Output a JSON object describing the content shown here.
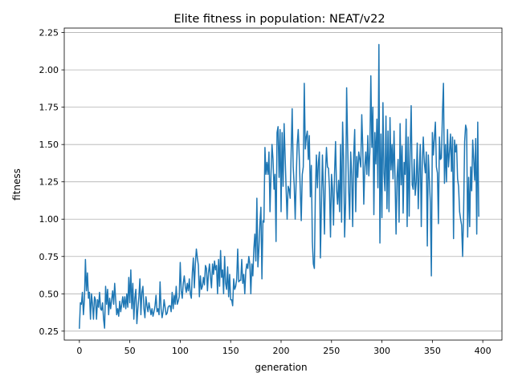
{
  "chart_data": {
    "type": "line",
    "title": "Elite fitness in population: NEAT/v22",
    "xlabel": "generation",
    "ylabel": "fitness",
    "xlim": [
      -15,
      419
    ],
    "ylim": [
      0.19,
      2.28
    ],
    "xticks": [
      0,
      50,
      100,
      150,
      200,
      250,
      300,
      350,
      400
    ],
    "xtick_labels": [
      "0",
      "50",
      "100",
      "150",
      "200",
      "250",
      "300",
      "350",
      "400"
    ],
    "yticks": [
      0.25,
      0.5,
      0.75,
      1.0,
      1.25,
      1.5,
      1.75,
      2.0,
      2.25
    ],
    "ytick_labels": [
      "0.25",
      "0.50",
      "0.75",
      "1.00",
      "1.25",
      "1.50",
      "1.75",
      "2.00",
      "2.25"
    ],
    "grid": "horizontal",
    "legend": "none",
    "line_color": "#1f77b4",
    "x_start": 0,
    "x_step": 1,
    "series": [
      {
        "values": [
          0.27,
          0.44,
          0.43,
          0.51,
          0.36,
          0.46,
          0.73,
          0.52,
          0.64,
          0.47,
          0.51,
          0.33,
          0.5,
          0.43,
          0.33,
          0.48,
          0.46,
          0.33,
          0.46,
          0.41,
          0.51,
          0.4,
          0.39,
          0.44,
          0.33,
          0.27,
          0.55,
          0.43,
          0.53,
          0.36,
          0.47,
          0.4,
          0.46,
          0.52,
          0.43,
          0.57,
          0.46,
          0.36,
          0.4,
          0.35,
          0.45,
          0.38,
          0.43,
          0.48,
          0.41,
          0.48,
          0.4,
          0.5,
          0.41,
          0.61,
          0.44,
          0.66,
          0.4,
          0.57,
          0.33,
          0.47,
          0.53,
          0.3,
          0.4,
          0.48,
          0.6,
          0.36,
          0.51,
          0.55,
          0.4,
          0.34,
          0.48,
          0.42,
          0.38,
          0.44,
          0.4,
          0.36,
          0.4,
          0.35,
          0.38,
          0.42,
          0.49,
          0.38,
          0.4,
          0.36,
          0.58,
          0.4,
          0.34,
          0.38,
          0.46,
          0.41,
          0.36,
          0.37,
          0.41,
          0.42,
          0.42,
          0.38,
          0.51,
          0.4,
          0.49,
          0.43,
          0.55,
          0.43,
          0.45,
          0.48,
          0.71,
          0.52,
          0.47,
          0.57,
          0.62,
          0.55,
          0.51,
          0.57,
          0.52,
          0.6,
          0.5,
          0.47,
          0.64,
          0.74,
          0.54,
          0.7,
          0.8,
          0.74,
          0.69,
          0.48,
          0.62,
          0.53,
          0.55,
          0.61,
          0.56,
          0.69,
          0.67,
          0.52,
          0.64,
          0.7,
          0.61,
          0.54,
          0.7,
          0.63,
          0.72,
          0.66,
          0.69,
          0.5,
          0.73,
          0.55,
          0.79,
          0.61,
          0.66,
          0.5,
          0.75,
          0.57,
          0.53,
          0.68,
          0.48,
          0.63,
          0.46,
          0.46,
          0.42,
          0.6,
          0.53,
          0.55,
          0.6,
          0.8,
          0.58,
          0.59,
          0.59,
          0.73,
          0.57,
          0.63,
          0.5,
          0.65,
          0.7,
          0.67,
          0.75,
          0.7,
          0.5,
          0.7,
          0.62,
          0.8,
          0.9,
          0.72,
          1.14,
          0.68,
          0.8,
          0.97,
          1.08,
          0.6,
          0.99,
          0.98,
          1.48,
          1.3,
          1.38,
          1.3,
          1.45,
          1.05,
          1.3,
          1.5,
          1.4,
          1.2,
          1.3,
          0.85,
          1.58,
          1.62,
          1.28,
          1.6,
          1.05,
          1.58,
          1.22,
          1.64,
          1.42,
          1.2,
          1.0,
          1.22,
          1.2,
          1.14,
          1.45,
          1.74,
          1.35,
          1.23,
          1.0,
          1.27,
          1.5,
          1.6,
          1.42,
          1.2,
          0.99,
          1.3,
          1.35,
          1.91,
          1.47,
          1.55,
          1.59,
          1.4,
          1.56,
          1.15,
          1.36,
          0.85,
          0.7,
          0.67,
          1.18,
          1.43,
          1.21,
          1.38,
          1.45,
          0.74,
          1.1,
          1.43,
          1.19,
          0.9,
          1.31,
          1.48,
          1.35,
          1.34,
          1.2,
          0.88,
          1.3,
          1.2,
          0.96,
          1.3,
          1.52,
          1.2,
          1.1,
          1.26,
          1.05,
          1.5,
          0.98,
          1.65,
          1.4,
          0.88,
          1.11,
          1.88,
          1.5,
          1.2,
          1.0,
          1.45,
          1.3,
          0.95,
          1.43,
          1.6,
          1.05,
          1.42,
          1.28,
          1.45,
          1.4,
          1.35,
          1.7,
          1.48,
          1.1,
          1.35,
          1.45,
          1.3,
          1.56,
          1.29,
          1.45,
          1.96,
          1.48,
          1.75,
          1.03,
          1.58,
          1.37,
          1.67,
          1.21,
          2.17,
          0.84,
          1.57,
          1.01,
          1.78,
          1.31,
          1.19,
          1.69,
          1.07,
          1.59,
          1.05,
          1.68,
          1.33,
          1.5,
          1.27,
          1.59,
          1.27,
          0.9,
          1.28,
          1.4,
          0.98,
          1.64,
          1.23,
          1.49,
          1.04,
          1.38,
          1.3,
          1.67,
          0.95,
          1.55,
          1.02,
          1.47,
          1.76,
          1.23,
          1.2,
          1.4,
          1.16,
          1.25,
          1.51,
          1.07,
          1.32,
          1.5,
          0.95,
          1.38,
          1.55,
          1.38,
          1.31,
          1.45,
          0.82,
          1.43,
          1.27,
          1.11,
          0.62,
          1.58,
          1.43,
          1.55,
          1.65,
          1.35,
          1.31,
          0.97,
          1.55,
          1.4,
          1.41,
          1.71,
          1.91,
          1.24,
          1.5,
          1.25,
          1.6,
          1.35,
          1.45,
          1.57,
          1.32,
          1.55,
          0.87,
          1.53,
          1.45,
          1.5,
          1.27,
          1.22,
          1.05,
          1.0,
          0.96,
          0.75,
          1.05,
          1.52,
          1.63,
          1.6,
          0.88,
          1.28,
          0.95,
          1.35,
          1.19,
          1.53,
          1.4,
          1.26,
          1.54,
          0.9,
          1.65,
          1.02
        ]
      }
    ]
  }
}
